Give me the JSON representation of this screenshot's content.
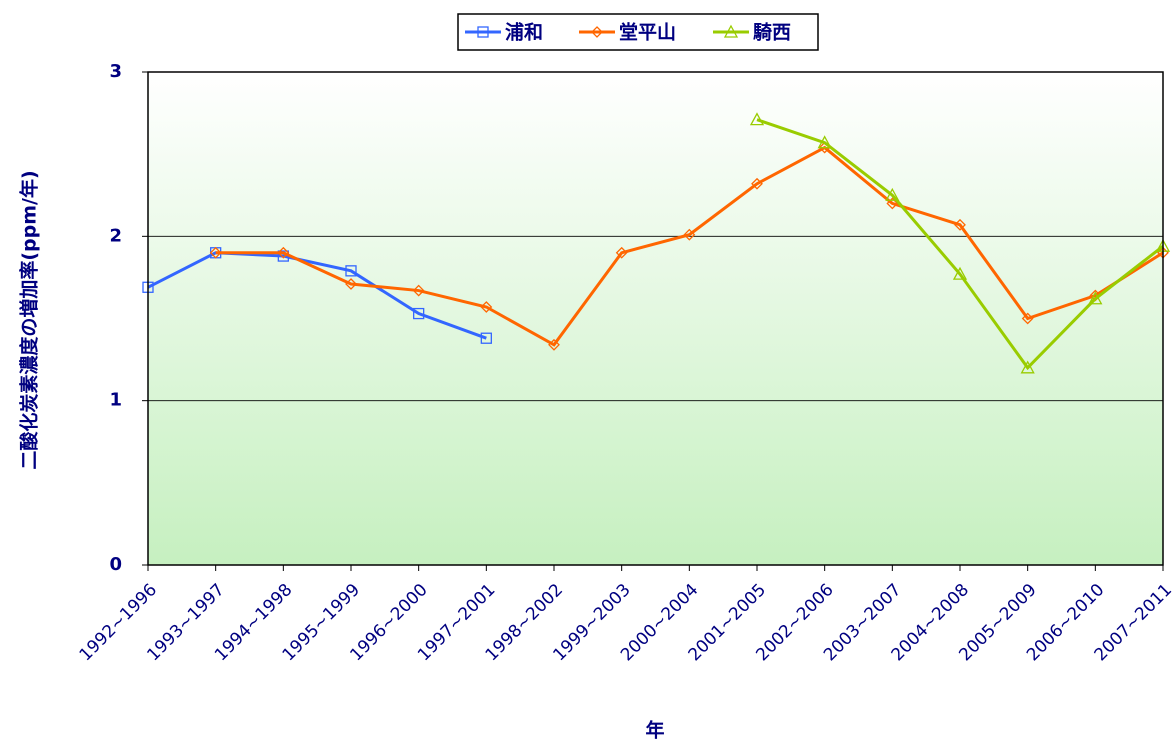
{
  "chart_data": {
    "type": "line",
    "y_label": "二酸化炭素濃度の増加率(ppm/年)",
    "x_label": "年",
    "categories": [
      "1992~1996",
      "1993~1997",
      "1994~1998",
      "1995~1999",
      "1996~2000",
      "1997~2001",
      "1998~2002",
      "1999~2003",
      "2000~2004",
      "2001~2005",
      "2002~2006",
      "2003~2007",
      "2004~2008",
      "2005~2009",
      "2006~2010",
      "2007~2011"
    ],
    "series": [
      {
        "name": "浦和",
        "color": "#3366ff",
        "marker": "square",
        "values": [
          1.69,
          1.9,
          1.88,
          1.79,
          1.53,
          1.38,
          null,
          null,
          null,
          null,
          null,
          null,
          null,
          null,
          null,
          null
        ]
      },
      {
        "name": "堂平山",
        "color": "#ff6600",
        "marker": "diamond",
        "values": [
          null,
          1.9,
          1.9,
          1.71,
          1.67,
          1.57,
          1.34,
          1.9,
          2.01,
          2.32,
          2.54,
          2.2,
          2.07,
          1.5,
          1.64,
          1.9
        ]
      },
      {
        "name": "騎西",
        "color": "#99cc00",
        "marker": "triangle",
        "values": [
          null,
          null,
          null,
          null,
          null,
          null,
          null,
          null,
          null,
          2.71,
          2.57,
          2.25,
          1.77,
          1.2,
          1.62,
          1.94
        ]
      }
    ],
    "ylim": [
      0,
      3
    ],
    "yticks": [
      0,
      1,
      2,
      3
    ],
    "grid": true,
    "legend": "top"
  }
}
